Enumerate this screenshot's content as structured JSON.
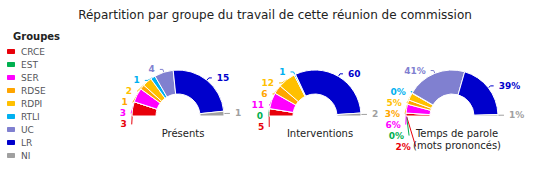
{
  "chart_data": {
    "type": "pie",
    "title": "Répartition par groupe du travail de cette réunion de commission",
    "categories": [
      "CRCE",
      "EST",
      "SER",
      "RDSE",
      "RDPI",
      "RTLI",
      "UC",
      "LR",
      "NI"
    ],
    "colors": [
      "#e8000a",
      "#00b050",
      "#ff00ff",
      "#ffa500",
      "#ffc000",
      "#00b0f0",
      "#8080d0",
      "#0000cc",
      "#a0a0a0"
    ],
    "legend": "left",
    "annotations": [
      "Groupes"
    ],
    "data_labels": true,
    "series": [
      {
        "name": "Présents",
        "values": [
          3,
          0,
          3,
          1,
          2,
          1,
          4,
          15,
          1
        ],
        "value_labels": [
          "3",
          null,
          "3",
          "1",
          "2",
          "1",
          "4",
          "15",
          "1"
        ]
      },
      {
        "name": "Interventions",
        "values": [
          5,
          0,
          11,
          6,
          12,
          1,
          0,
          60,
          2
        ],
        "value_labels": [
          "5",
          "0",
          "11",
          "6",
          "12",
          "1",
          null,
          "60",
          "2"
        ]
      },
      {
        "name": "Temps de parole\n(mots prononcés)",
        "values": [
          2,
          0,
          6,
          3,
          5,
          0.3,
          41,
          39,
          1
        ],
        "value_labels": [
          "2%",
          "0%",
          "6%",
          "3%",
          "5%",
          "0%",
          "41%",
          "39%",
          "1%"
        ]
      }
    ]
  }
}
